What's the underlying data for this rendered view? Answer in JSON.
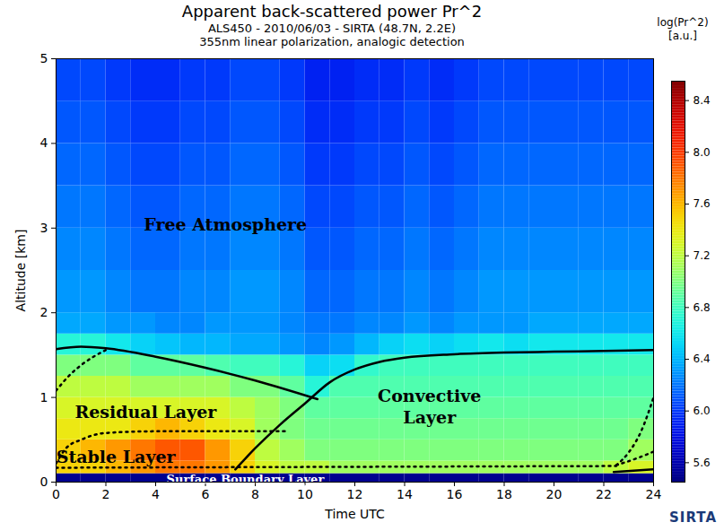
{
  "chart_data": {
    "type": "heatmap",
    "title": "Apparent back-scattered power Pr^2",
    "subtitle": [
      "ALS450 - 2010/06/03 - SIRTA (48.7N, 2.2E)",
      "355nm linear polarization, analogic detection"
    ],
    "x_label": "Time UTC",
    "y_label": "Altitude [km]",
    "xlim": [
      0,
      24
    ],
    "xticks": [
      0,
      2,
      4,
      6,
      8,
      10,
      12,
      14,
      16,
      18,
      20,
      22,
      24
    ],
    "ylim": [
      0,
      5
    ],
    "yticks": [
      0,
      1,
      2,
      3,
      4,
      5
    ],
    "x_bins": [
      0,
      1,
      2,
      3,
      4,
      5,
      6,
      7,
      8,
      9,
      10,
      11,
      12,
      13,
      14,
      15,
      16,
      17,
      18,
      19,
      20,
      21,
      22,
      23,
      24
    ],
    "y_bins": [
      0,
      0.1,
      0.25,
      0.5,
      0.75,
      1.0,
      1.25,
      1.5,
      1.75,
      2.0,
      2.5,
      3.0,
      3.5,
      4.0,
      4.5,
      5.0
    ],
    "cells": [
      [
        5.5,
        5.5,
        5.5,
        5.5,
        5.5,
        5.5,
        5.5,
        5.5,
        5.5,
        5.5,
        5.5,
        5.5,
        5.5,
        5.5,
        5.5,
        5.5,
        5.5,
        5.5,
        5.5,
        5.5,
        5.5,
        5.5,
        5.5,
        5.5
      ],
      [
        7.5,
        7.5,
        7.6,
        7.7,
        7.8,
        7.8,
        7.7,
        7.5,
        7.3,
        7.2,
        7.2,
        7.1,
        7.1,
        7.1,
        7.1,
        7.1,
        7.1,
        7.1,
        7.1,
        7.1,
        7.1,
        7.1,
        7.2,
        7.3
      ],
      [
        7.5,
        7.6,
        7.7,
        7.8,
        7.9,
        7.9,
        7.7,
        7.5,
        7.2,
        7.1,
        7.0,
        7.0,
        7.0,
        7.0,
        7.0,
        7.0,
        7.0,
        7.0,
        7.0,
        7.0,
        7.0,
        7.0,
        7.0,
        7.1
      ],
      [
        7.4,
        7.4,
        7.4,
        7.5,
        7.6,
        7.5,
        7.4,
        7.3,
        7.1,
        7.0,
        6.95,
        6.95,
        6.95,
        6.95,
        6.95,
        6.95,
        6.95,
        6.95,
        6.95,
        6.95,
        6.95,
        6.95,
        6.95,
        7.0
      ],
      [
        7.3,
        7.3,
        7.3,
        7.3,
        7.3,
        7.3,
        7.3,
        7.2,
        7.1,
        7.0,
        6.9,
        6.9,
        6.9,
        6.9,
        6.9,
        6.9,
        6.9,
        6.9,
        6.9,
        6.9,
        6.9,
        6.9,
        6.9,
        6.9
      ],
      [
        7.2,
        7.2,
        7.2,
        7.1,
        7.1,
        7.1,
        7.1,
        7.0,
        7.0,
        6.9,
        6.7,
        6.85,
        6.85,
        6.85,
        6.85,
        6.85,
        6.85,
        6.85,
        6.85,
        6.85,
        6.85,
        6.85,
        6.85,
        6.85
      ],
      [
        7.0,
        7.0,
        7.0,
        6.9,
        6.9,
        6.9,
        6.85,
        6.8,
        6.8,
        6.7,
        6.5,
        6.55,
        6.75,
        6.8,
        6.8,
        6.8,
        6.8,
        6.8,
        6.8,
        6.8,
        6.8,
        6.8,
        6.8,
        6.8
      ],
      [
        6.7,
        6.7,
        6.6,
        6.5,
        6.45,
        6.4,
        6.4,
        6.35,
        6.35,
        6.3,
        6.25,
        6.3,
        6.4,
        6.5,
        6.55,
        6.5,
        6.55,
        6.6,
        6.55,
        6.6,
        6.6,
        6.6,
        6.6,
        6.6
      ],
      [
        6.35,
        6.35,
        6.3,
        6.3,
        6.25,
        6.25,
        6.3,
        6.3,
        6.3,
        6.25,
        6.2,
        6.2,
        6.25,
        6.25,
        6.3,
        6.25,
        6.3,
        6.3,
        6.3,
        6.35,
        6.35,
        6.35,
        6.35,
        6.35
      ],
      [
        6.3,
        6.3,
        6.25,
        6.2,
        6.2,
        6.25,
        6.25,
        6.3,
        6.3,
        6.25,
        6.15,
        6.15,
        6.2,
        6.2,
        6.25,
        6.2,
        6.25,
        6.3,
        6.3,
        6.3,
        6.3,
        6.3,
        6.3,
        6.3
      ],
      [
        6.25,
        6.25,
        6.2,
        6.15,
        6.15,
        6.2,
        6.2,
        6.25,
        6.25,
        6.2,
        6.1,
        6.1,
        6.15,
        6.15,
        6.2,
        6.15,
        6.2,
        6.25,
        6.25,
        6.25,
        6.25,
        6.25,
        6.25,
        6.25
      ],
      [
        6.2,
        6.2,
        6.15,
        6.1,
        6.1,
        6.15,
        6.15,
        6.2,
        6.2,
        6.15,
        6.05,
        6.05,
        6.1,
        6.1,
        6.15,
        6.1,
        6.15,
        6.2,
        6.2,
        6.2,
        6.2,
        6.2,
        6.2,
        6.2
      ],
      [
        6.15,
        6.15,
        6.1,
        6.05,
        6.05,
        6.1,
        6.1,
        6.15,
        6.15,
        6.1,
        6.0,
        6.0,
        6.05,
        6.05,
        6.1,
        6.05,
        6.1,
        6.15,
        6.15,
        6.15,
        6.15,
        6.15,
        6.15,
        6.15
      ],
      [
        6.1,
        6.1,
        6.05,
        6.0,
        6.0,
        6.05,
        6.05,
        6.1,
        6.1,
        6.05,
        5.95,
        5.95,
        6.0,
        6.0,
        6.05,
        6.0,
        6.05,
        6.1,
        6.1,
        6.1,
        6.1,
        6.1,
        6.1,
        6.1
      ],
      [
        6.05,
        6.05,
        6.0,
        5.95,
        5.95,
        6.0,
        6.0,
        6.05,
        6.05,
        6.0,
        5.9,
        5.9,
        5.95,
        5.95,
        6.0,
        5.95,
        6.0,
        6.05,
        6.05,
        6.05,
        6.05,
        6.05,
        6.05,
        6.05
      ]
    ],
    "colorbar": {
      "title": "log(Pr^2)",
      "unit": "[a.u.]",
      "range": [
        5.45,
        8.55
      ],
      "ticks": [
        5.6,
        {
          "value": 6,
          "label": "6.0"
        },
        6.4,
        6.8,
        7.2,
        7.6,
        {
          "value": 8,
          "label": "8.0"
        },
        8.4
      ]
    },
    "boundaries": [
      {
        "x": [
          0,
          1,
          2,
          4,
          6,
          8,
          10.5
        ],
        "y": [
          1.57,
          1.6,
          1.58,
          1.48,
          1.35,
          1.2,
          0.98
        ],
        "line_style": "solid"
      },
      {
        "x": [
          7.2,
          8,
          9,
          10,
          11,
          12,
          13,
          14,
          16,
          18,
          20,
          22,
          24
        ],
        "y": [
          0.15,
          0.4,
          0.68,
          0.93,
          1.18,
          1.33,
          1.42,
          1.47,
          1.51,
          1.53,
          1.54,
          1.55,
          1.56
        ],
        "line_style": "solid"
      },
      {
        "x": [
          22.4,
          24
        ],
        "y": [
          0.12,
          0.15
        ],
        "line_style": "solid"
      },
      {
        "x": [
          0,
          0.5,
          1,
          1.5,
          2
        ],
        "y": [
          1.08,
          1.25,
          1.38,
          1.48,
          1.56
        ],
        "line_style": "dotted"
      },
      {
        "x": [
          0,
          0.4,
          1,
          2,
          4,
          6,
          8,
          9.3
        ],
        "y": [
          0.22,
          0.4,
          0.5,
          0.58,
          0.6,
          0.6,
          0.6,
          0.6
        ],
        "line_style": "dotted"
      },
      {
        "x": [
          0,
          22.5
        ],
        "y": [
          0.17,
          0.19
        ],
        "line_style": "dotted"
      },
      {
        "x": [
          22.5,
          23,
          23.5,
          24
        ],
        "y": [
          0.2,
          0.35,
          0.6,
          1.0
        ],
        "line_style": "dotted"
      },
      {
        "x": [
          22.5,
          23.5,
          24
        ],
        "y": [
          0.2,
          0.3,
          0.36
        ],
        "line_style": "dotted"
      }
    ],
    "annotations": [
      {
        "text": "Free Atmosphere",
        "x": 6.8,
        "y": 3.05,
        "color": "#000000"
      },
      {
        "text": "Residual Layer",
        "x": 3.6,
        "y": 0.84,
        "color": "#000000"
      },
      {
        "text": "Stable Layer",
        "x": 2.4,
        "y": 0.31,
        "color": "#000000"
      },
      {
        "text": "Convective\nLayer",
        "x": 15.0,
        "y": 0.9,
        "color": "#000000"
      },
      {
        "text": "Surface Boundary Layer",
        "x": 7.6,
        "y": 0.04,
        "color": "#ffffff"
      }
    ],
    "logo": "SIRTA"
  }
}
